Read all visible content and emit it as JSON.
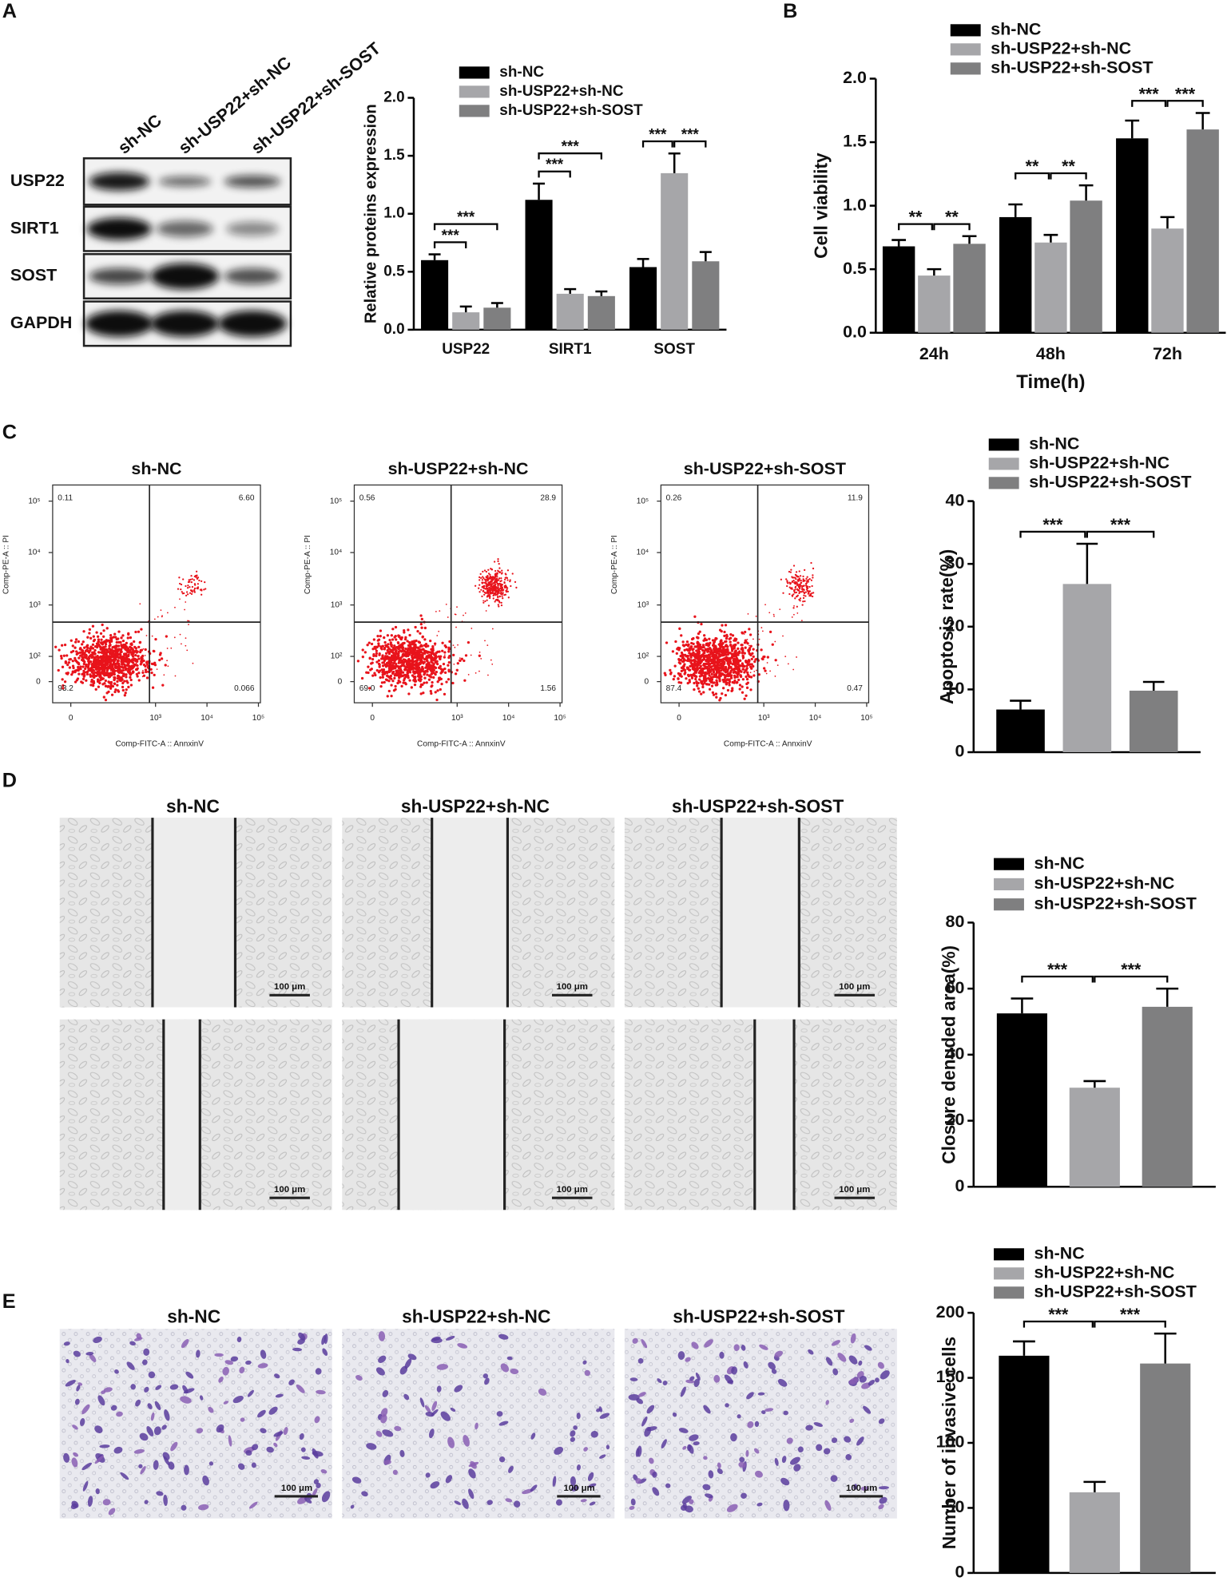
{
  "panel_labels": [
    "A",
    "B",
    "C",
    "D",
    "E"
  ],
  "blot": {
    "lanes": [
      "sh-NC",
      "sh-USP22+sh-NC",
      "sh-USP22+sh-SOST"
    ],
    "rows": [
      "USP22",
      "SIRT1",
      "SOST",
      "GAPDH"
    ]
  },
  "flow": {
    "plots": [
      {
        "title": "sh-NC",
        "quadrants": [
          "0.11",
          "6.60",
          "93.2",
          "0.066"
        ]
      },
      {
        "title": "sh-USP22+sh-NC",
        "quadrants": [
          "0.56",
          "28.9",
          "69.0",
          "1.56"
        ]
      },
      {
        "title": "sh-USP22+sh-SOST",
        "quadrants": [
          "0.26",
          "11.9",
          "87.4",
          "0.47"
        ]
      }
    ],
    "x_label": "Comp-FITC-A :: AnnxinV",
    "y_label": "Comp-PE-A :: PI",
    "xticks": [
      "0",
      "10³",
      "10⁴",
      "10⁵"
    ],
    "yticks": [
      "0",
      "10²",
      "10³",
      "10⁴",
      "10⁵"
    ]
  },
  "wound": {
    "titles": [
      "sh-NC",
      "sh-USP22+sh-NC",
      "sh-USP22+sh-SOST"
    ],
    "scale_bar": "100 μm"
  },
  "transwell": {
    "titles": [
      "sh-NC",
      "sh-USP22+sh-NC",
      "sh-USP22+sh-SOST"
    ],
    "scale_bar": "100 μm"
  },
  "chart_data": [
    {
      "type": "bar",
      "categories": [
        "USP22",
        "SIRT1",
        "SOST"
      ],
      "y_label": "Relative proteins expression",
      "series": [
        {
          "name": "sh-NC",
          "color": "#000000",
          "values": [
            0.6,
            1.12,
            0.54
          ],
          "errors": [
            0.05,
            0.14,
            0.07
          ]
        },
        {
          "name": "sh-USP22+sh-NC",
          "color": "#a6a6a9",
          "values": [
            0.15,
            0.31,
            1.35
          ],
          "errors": [
            0.05,
            0.04,
            0.17
          ]
        },
        {
          "name": "sh-USP22+sh-SOST",
          "color": "#7f7f80",
          "values": [
            0.19,
            0.29,
            0.59
          ],
          "errors": [
            0.04,
            0.04,
            0.08
          ]
        }
      ],
      "ylim": [
        0,
        2
      ],
      "yticks": [
        {
          "value": 0,
          "label": "0.0"
        },
        0.5,
        {
          "value": 1,
          "label": "1.0"
        },
        1.5,
        {
          "value": 2,
          "label": "2.0"
        }
      ],
      "annotations": [
        "***",
        "***",
        "***",
        "***",
        "***",
        "***"
      ]
    },
    {
      "type": "bar",
      "categories": [
        "24h",
        "48h",
        "72h"
      ],
      "x_label": "Time(h)",
      "y_label": "Cell viability",
      "series": [
        {
          "name": "sh-NC",
          "color": "#000000",
          "values": [
            0.68,
            0.91,
            1.53
          ],
          "errors": [
            0.05,
            0.1,
            0.14
          ]
        },
        {
          "name": "sh-USP22+sh-NC",
          "color": "#a6a6a9",
          "values": [
            0.45,
            0.71,
            0.82
          ],
          "errors": [
            0.05,
            0.06,
            0.09
          ]
        },
        {
          "name": "sh-USP22+sh-SOST",
          "color": "#7f7f80",
          "values": [
            0.7,
            1.04,
            1.6
          ],
          "errors": [
            0.06,
            0.12,
            0.13
          ]
        }
      ],
      "ylim": [
        0,
        2
      ],
      "yticks": [
        {
          "value": 0,
          "label": "0.0"
        },
        0.5,
        {
          "value": 1,
          "label": "1.0"
        },
        1.5,
        {
          "value": 2,
          "label": "2.0"
        }
      ],
      "annotations": [
        "**",
        "**",
        "**",
        "**",
        "***",
        "***"
      ]
    },
    {
      "type": "bar",
      "categories": [
        null
      ],
      "y_label": "Apoptosis rate(%)",
      "series": [
        {
          "name": "sh-NC",
          "color": "#000000",
          "values": [
            6.8
          ],
          "errors": [
            1.4
          ]
        },
        {
          "name": "sh-USP22+sh-NC",
          "color": "#a6a6a9",
          "values": [
            26.8
          ],
          "errors": [
            6.4
          ]
        },
        {
          "name": "sh-USP22+sh-SOST",
          "color": "#7f7f80",
          "values": [
            9.8
          ],
          "errors": [
            1.4
          ]
        }
      ],
      "ylim": [
        0,
        40
      ],
      "yticks": [
        0,
        10,
        20,
        30,
        40
      ],
      "annotations": [
        "***",
        "***"
      ]
    },
    {
      "type": "bar",
      "categories": [
        null
      ],
      "y_label": "Closure denuded area(%)",
      "series": [
        {
          "name": "sh-NC",
          "color": "#000000",
          "values": [
            52.5
          ],
          "errors": [
            4.5
          ]
        },
        {
          "name": "sh-USP22+sh-NC",
          "color": "#a6a6a9",
          "values": [
            30
          ],
          "errors": [
            2
          ]
        },
        {
          "name": "sh-USP22+sh-SOST",
          "color": "#7f7f80",
          "values": [
            54.5
          ],
          "errors": [
            5.5
          ]
        }
      ],
      "ylim": [
        0,
        80
      ],
      "yticks": [
        0,
        20,
        40,
        60,
        80
      ],
      "annotations": [
        "***",
        "***"
      ]
    },
    {
      "type": "bar",
      "categories": [
        null
      ],
      "y_label": "Number of invasive cells",
      "series": [
        {
          "name": "sh-NC",
          "color": "#000000",
          "values": [
            167
          ],
          "errors": [
            11
          ]
        },
        {
          "name": "sh-USP22+sh-NC",
          "color": "#a6a6a9",
          "values": [
            62
          ],
          "errors": [
            8
          ]
        },
        {
          "name": "sh-USP22+sh-SOST",
          "color": "#7f7f80",
          "values": [
            161
          ],
          "errors": [
            23
          ]
        }
      ],
      "ylim": [
        0,
        200
      ],
      "yticks": [
        0,
        50,
        100,
        150,
        200
      ],
      "annotations": [
        "***",
        "***"
      ]
    }
  ]
}
